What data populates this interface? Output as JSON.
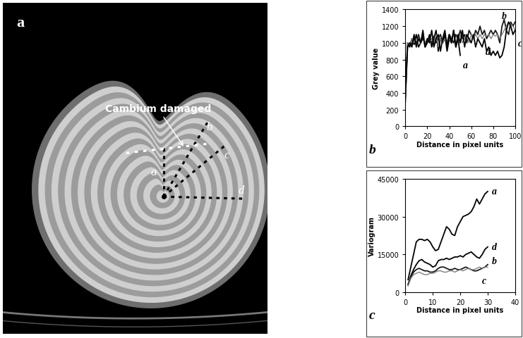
{
  "image": {
    "type": "image",
    "panel_label": "a",
    "annotation": "Cambium damaged",
    "profile_labels": [
      "a",
      "b",
      "c",
      "d"
    ]
  },
  "chart_data": [
    {
      "type": "line",
      "panel_label": "b",
      "x_label": "Distance in pixel units",
      "y_label": "Grey value",
      "x": [
        0,
        2,
        4,
        6,
        8,
        10,
        12,
        14,
        16,
        18,
        20,
        22,
        24,
        26,
        28,
        30,
        32,
        34,
        36,
        38,
        40,
        42,
        44,
        46,
        48,
        50,
        52,
        54,
        56,
        58,
        60,
        62,
        64,
        66,
        68,
        70,
        72,
        74,
        76,
        78,
        80,
        82,
        84,
        86,
        88,
        90,
        92,
        94,
        96,
        98,
        100
      ],
      "xlim": [
        0,
        100
      ],
      "xticks": [
        0,
        20,
        40,
        60,
        80,
        100
      ],
      "ylim": [
        0,
        1400
      ],
      "yticks": [
        0,
        200,
        400,
        600,
        800,
        1000,
        1200,
        1400
      ],
      "grid": false,
      "series": [
        {
          "name": "a",
          "color": "#000000",
          "values": [
            400,
            1000,
            950,
            1050,
            980,
            1100,
            950,
            1000,
            1150,
            950,
            1000,
            1100,
            950,
            1050,
            1150,
            900,
            1050,
            1000,
            1100,
            900,
            1050,
            1000,
            1150,
            950,
            1050,
            850,
            null,
            null,
            null,
            null,
            null,
            null,
            null,
            null,
            null,
            null,
            null,
            null,
            null,
            null,
            null,
            null,
            null,
            null,
            null,
            null,
            null,
            null,
            null,
            null,
            null
          ]
        },
        {
          "name": "b",
          "color": "#1a1a1a",
          "values": [
            300,
            950,
            1000,
            980,
            1050,
            1000,
            1100,
            1000,
            1050,
            1000,
            1020,
            1050,
            1000,
            1080,
            1000,
            1050,
            1100,
            1000,
            1050,
            1000,
            1100,
            1050,
            1000,
            1100,
            1050,
            1150,
            1050,
            1100,
            1000,
            1150,
            1100,
            1050,
            1150,
            1100,
            1200,
            1100,
            1150,
            1050,
            1100,
            1150,
            1100,
            1150,
            1100,
            1000,
            1200,
            1280,
            1150,
            1100,
            1250,
            1200,
            1250
          ]
        },
        {
          "name": "c",
          "color": "#808080",
          "values": [
            250,
            1000,
            980,
            1050,
            1000,
            1050,
            980,
            1000,
            1100,
            1000,
            1050,
            1000,
            1050,
            1000,
            1100,
            950,
            1050,
            1000,
            1050,
            1000,
            1050,
            1000,
            1100,
            1000,
            1050,
            1100,
            1000,
            1050,
            1100,
            1000,
            1100,
            1050,
            1100,
            1050,
            1100,
            1050,
            1100,
            1080,
            1100,
            1050,
            1100,
            1080,
            1100,
            1050,
            1100,
            1150,
            1200,
            1250,
            1220,
            1200,
            1150
          ]
        },
        {
          "name": "d",
          "color": "#000000",
          "values": [
            350,
            950,
            1000,
            950,
            1100,
            950,
            1050,
            1000,
            1100,
            950,
            1050,
            1000,
            1150,
            950,
            1050,
            1100,
            900,
            1050,
            1150,
            950,
            1100,
            1000,
            1150,
            950,
            1100,
            1000,
            1150,
            950,
            1100,
            1050,
            1000,
            1100,
            950,
            1050,
            1000,
            950,
            1050,
            900,
            950,
            850,
            900,
            850,
            900,
            820,
            850,
            950,
            1150,
            1250,
            1200,
            1100,
            1150
          ]
        }
      ]
    },
    {
      "type": "line",
      "panel_label": "c",
      "x_label": "Distance in pixel units",
      "y_label": "Variogram",
      "x": [
        1,
        2,
        3,
        4,
        5,
        6,
        7,
        8,
        9,
        10,
        11,
        12,
        13,
        14,
        15,
        16,
        17,
        18,
        19,
        20,
        21,
        22,
        23,
        24,
        25,
        26,
        27,
        28,
        29,
        30
      ],
      "xlim": [
        0,
        40
      ],
      "xticks": [
        0,
        10,
        20,
        30,
        40
      ],
      "ylim": [
        0,
        45000
      ],
      "yticks": [
        0,
        15000,
        30000,
        45000
      ],
      "grid": false,
      "series": [
        {
          "name": "a",
          "color": "#000000",
          "values": [
            5000,
            10000,
            15000,
            20000,
            21000,
            21000,
            20500,
            21000,
            20000,
            18000,
            16500,
            17000,
            20000,
            23000,
            26000,
            25000,
            23000,
            22500,
            26000,
            28000,
            30000,
            30500,
            31000,
            32000,
            34000,
            37000,
            35000,
            37000,
            39000,
            40000
          ]
        },
        {
          "name": "d",
          "color": "#000000",
          "values": [
            3000,
            6500,
            9000,
            11000,
            12500,
            13000,
            12000,
            11500,
            11000,
            10000,
            10500,
            12500,
            13000,
            13000,
            13500,
            13000,
            13500,
            14000,
            14000,
            14500,
            14000,
            15000,
            15500,
            16000,
            15000,
            14000,
            13500,
            15000,
            17000,
            18000
          ]
        },
        {
          "name": "b",
          "color": "#1a1a1a",
          "values": [
            3000,
            6000,
            8000,
            9000,
            9500,
            9000,
            8500,
            8500,
            8000,
            8000,
            8500,
            9500,
            10000,
            10000,
            9500,
            9000,
            9000,
            9500,
            9000,
            9000,
            9500,
            10000,
            9500,
            9000,
            8500,
            8500,
            9000,
            9500,
            10000,
            11000
          ]
        },
        {
          "name": "c",
          "color": "#808080",
          "values": [
            2500,
            5500,
            7000,
            7500,
            8000,
            7500,
            7000,
            7000,
            7500,
            7500,
            8000,
            8500,
            8500,
            8000,
            8000,
            8500,
            8500,
            8000,
            8500,
            9000,
            8500,
            9000,
            9500,
            9000,
            9000,
            9500,
            10000,
            9500,
            10000,
            10000
          ]
        }
      ]
    }
  ]
}
